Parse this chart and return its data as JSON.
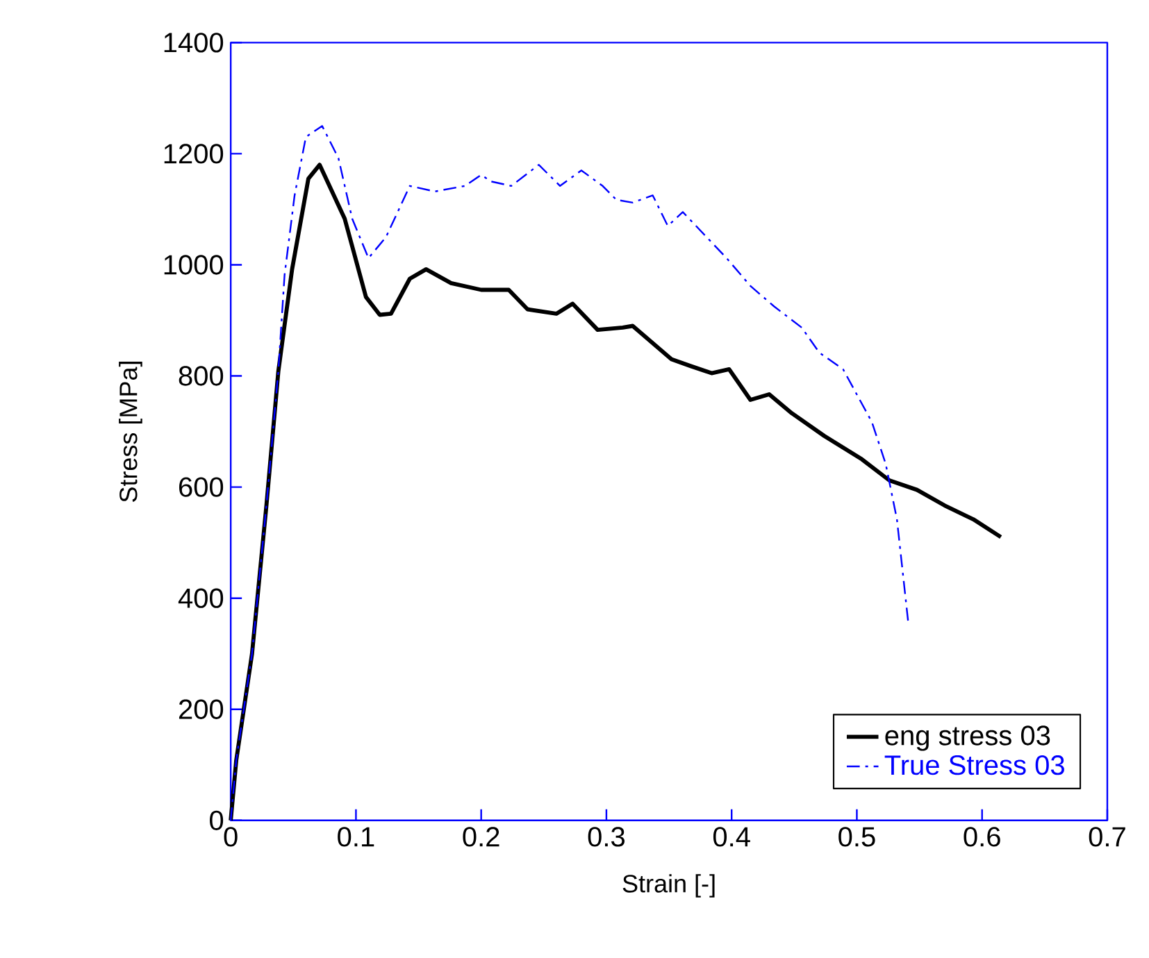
{
  "chart_data": {
    "type": "line",
    "xlabel": "Strain [-]",
    "ylabel": "Stress [MPa]",
    "xlim": [
      0,
      0.7
    ],
    "ylim": [
      0,
      1400
    ],
    "xticks": [
      0,
      0.1,
      0.2,
      0.3,
      0.4,
      0.5,
      0.6,
      0.7
    ],
    "yticks": [
      0,
      200,
      400,
      600,
      800,
      1000,
      1200,
      1400
    ],
    "legend": "bottom right",
    "grid": false,
    "marker": "none",
    "series": [
      {
        "name": "eng stress 03",
        "color": "#000000",
        "line_style": "solid",
        "x": [
          0,
          0.0044,
          0.017,
          0.0285,
          0.038,
          0.049,
          0.062,
          0.071,
          0.091,
          0.108,
          0.119,
          0.128,
          0.143,
          0.156,
          0.176,
          0.2,
          0.222,
          0.237,
          0.26,
          0.273,
          0.293,
          0.313,
          0.321,
          0.352,
          0.367,
          0.384,
          0.398,
          0.415,
          0.43,
          0.448,
          0.474,
          0.504,
          0.526,
          0.548,
          0.57,
          0.593,
          0.615
        ],
        "values": [
          0,
          108,
          300,
          567,
          808,
          992,
          1155,
          1180,
          1083,
          942,
          910,
          912,
          975,
          992,
          967,
          955,
          955,
          920,
          912,
          930,
          883,
          887,
          890,
          830,
          818,
          805,
          812,
          757,
          767,
          733,
          692,
          650,
          612,
          595,
          567,
          542,
          510
        ]
      },
      {
        "name": "True Stress 03",
        "color": "#0000ff",
        "line_style": "dashed",
        "x": [
          0,
          0.0044,
          0.017,
          0.0285,
          0.038,
          0.043,
          0.051,
          0.06,
          0.073,
          0.086,
          0.097,
          0.11,
          0.124,
          0.143,
          0.163,
          0.187,
          0.2,
          0.208,
          0.224,
          0.246,
          0.263,
          0.28,
          0.297,
          0.308,
          0.321,
          0.337,
          0.349,
          0.361,
          0.38,
          0.396,
          0.415,
          0.434,
          0.456,
          0.47,
          0.489,
          0.512,
          0.523,
          0.532,
          0.541
        ],
        "values": [
          0,
          108,
          300,
          567,
          808,
          982,
          1125,
          1230,
          1250,
          1192,
          1083,
          1012,
          1050,
          1142,
          1132,
          1142,
          1162,
          1150,
          1142,
          1180,
          1142,
          1170,
          1142,
          1117,
          1112,
          1125,
          1070,
          1095,
          1050,
          1012,
          962,
          925,
          887,
          842,
          812,
          717,
          642,
          542,
          357
        ]
      }
    ]
  }
}
